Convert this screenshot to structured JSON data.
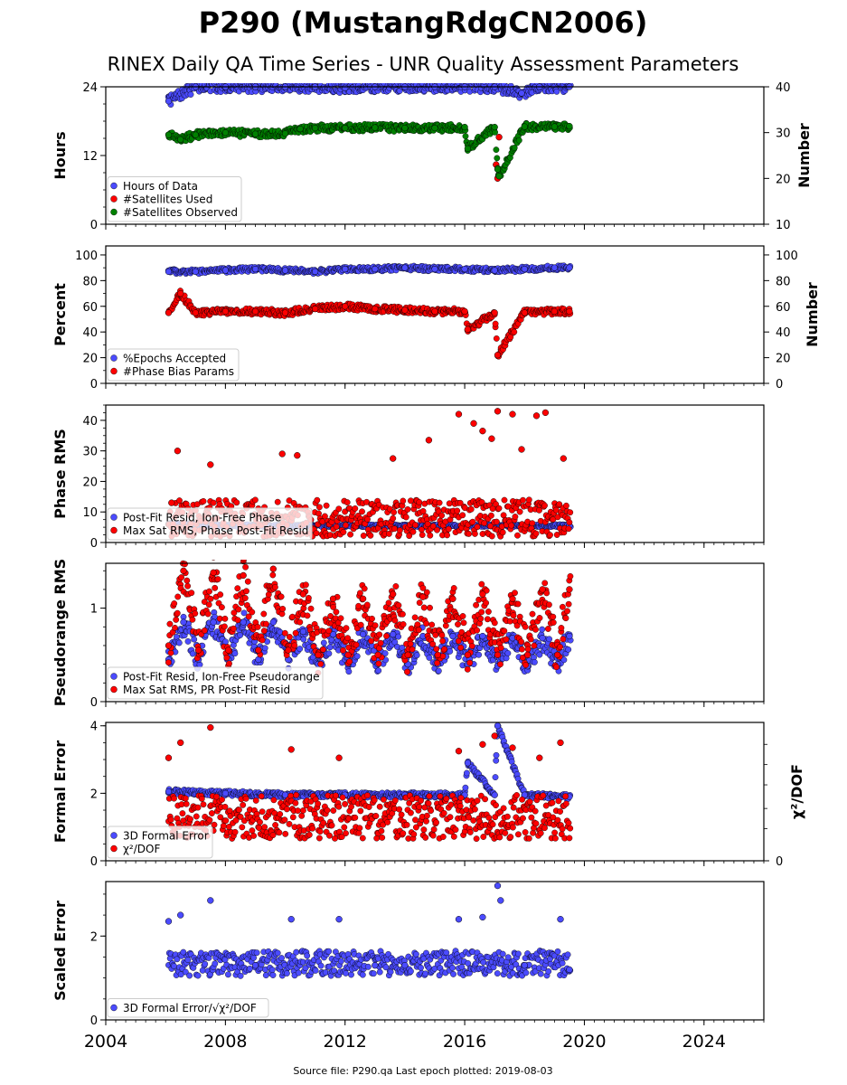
{
  "figure": {
    "title": "P290 (MustangRdgCN2006)",
    "subtitle": "RINEX Daily QA Time Series - UNR Quality Assessment Parameters",
    "source_note": "Source file: P290.qa Last epoch plotted: 2019-08-03"
  },
  "chart_data": [
    {
      "type": "scatter",
      "ylabel": "Hours",
      "ylabel_right": "Number",
      "xlim": [
        2004,
        2026
      ],
      "ylim": [
        0,
        24
      ],
      "ylim_right": [
        10,
        40
      ],
      "yticks": [
        0,
        12,
        24
      ],
      "yticks_right": [
        10,
        20,
        30,
        40
      ],
      "legend_position": "lower-left",
      "series": [
        {
          "name": "Hours of Data",
          "color": "#4b4bff",
          "axis": "left",
          "x": [
            2006.1,
            2007.0,
            2008.0,
            2009.0,
            2010.0,
            2011.0,
            2012.0,
            2013.0,
            2014.0,
            2015.0,
            2016.0,
            2017.0,
            2017.9,
            2018.5,
            2019.5
          ],
          "y": [
            21.5,
            24,
            24,
            24,
            24,
            24,
            23.8,
            24,
            24,
            24,
            24,
            24,
            22.9,
            24,
            24
          ]
        },
        {
          "name": "#Satellites Used",
          "color": "#ff0000",
          "axis": "right",
          "x": [
            2017.05,
            2017.1,
            2017.15
          ],
          "y": [
            23,
            20,
            29
          ]
        },
        {
          "name": "#Satellites Observed",
          "color": "#008000",
          "axis": "right",
          "x": [
            2006.1,
            2006.5,
            2007.0,
            2008.0,
            2009.0,
            2010.0,
            2010.5,
            2011.0,
            2012.0,
            2013.0,
            2014.0,
            2015.0,
            2016.0,
            2016.1,
            2017.0,
            2017.1,
            2017.15,
            2018.0,
            2019.0,
            2019.5
          ],
          "y": [
            29.5,
            28.5,
            29.5,
            30.0,
            29.7,
            29.8,
            30.8,
            31.0,
            31.0,
            31.1,
            31.0,
            31.0,
            31.2,
            26.5,
            31.2,
            22.0,
            20.5,
            31.3,
            31.3,
            31.4
          ]
        }
      ]
    },
    {
      "type": "scatter",
      "ylabel": "Percent",
      "ylabel_right": "Number",
      "xlim": [
        2004,
        2026
      ],
      "ylim": [
        0,
        107
      ],
      "ylim_right": [
        0,
        107
      ],
      "yticks": [
        0,
        20,
        40,
        60,
        80,
        100
      ],
      "yticks_right": [
        0,
        20,
        40,
        60,
        80,
        100
      ],
      "legend_position": "lower-left",
      "series": [
        {
          "name": "%Epochs Accepted",
          "color": "#4b4bff",
          "axis": "left",
          "x": [
            2006.1,
            2007.0,
            2008.0,
            2009.0,
            2010.0,
            2011.0,
            2012.0,
            2013.0,
            2014.0,
            2015.0,
            2016.0,
            2017.0,
            2018.0,
            2019.0,
            2019.5
          ],
          "y": [
            87,
            87,
            88,
            89,
            88,
            87,
            89,
            89,
            90,
            89,
            89,
            88,
            89,
            90,
            90
          ]
        },
        {
          "name": "#Phase Bias Params",
          "color": "#ff0000",
          "axis": "right",
          "x": [
            2006.1,
            2006.5,
            2007.0,
            2008.0,
            2009.0,
            2010.0,
            2011.0,
            2012.0,
            2013.0,
            2014.0,
            2015.0,
            2016.0,
            2016.1,
            2017.0,
            2017.1,
            2018.0,
            2019.0,
            2019.5
          ],
          "y": [
            55,
            70,
            55,
            56,
            56,
            55,
            58,
            60,
            58,
            57,
            56,
            56,
            42,
            55,
            22,
            55,
            56,
            56
          ]
        }
      ]
    },
    {
      "type": "scatter",
      "ylabel": "Phase RMS",
      "xlim": [
        2004,
        2026
      ],
      "ylim": [
        0,
        45
      ],
      "yticks": [
        0,
        10,
        20,
        30,
        40
      ],
      "legend_position": "lower-left",
      "series": [
        {
          "name": "Post-Fit Resid, Ion-Free Phase",
          "color": "#4b4bff",
          "axis": "left",
          "x": [
            2006.1,
            2008.0,
            2010.0,
            2012.0,
            2014.0,
            2016.0,
            2018.0,
            2019.5
          ],
          "y": [
            6,
            5.5,
            5.5,
            5.5,
            5.5,
            5.5,
            5.5,
            5.5
          ]
        },
        {
          "name": "Max Sat RMS, Phase Post-Fit Resid",
          "color": "#ff0000",
          "axis": "left",
          "x": [
            2006.2,
            2006.4,
            2007.5,
            2009.9,
            2010.4,
            2013.6,
            2014.8,
            2015.8,
            2016.3,
            2016.6,
            2016.9,
            2017.1,
            2017.6,
            2017.9,
            2018.4,
            2018.7,
            2019.3
          ],
          "y": [
            13,
            30,
            25.5,
            29,
            28.5,
            27.5,
            33.5,
            42,
            39,
            36.5,
            34,
            43,
            42,
            30.5,
            41.5,
            42.5,
            27.5
          ]
        }
      ]
    },
    {
      "type": "scatter",
      "ylabel": "Pseudorange RMS",
      "xlim": [
        2004,
        2026
      ],
      "ylim": [
        0,
        1.48
      ],
      "yticks": [
        0,
        1
      ],
      "legend_position": "lower-left",
      "series": [
        {
          "name": "Post-Fit Resid, Ion-Free Pseudorange",
          "color": "#4b4bff",
          "axis": "left",
          "x": [
            2006.1,
            2006.6,
            2007.1,
            2007.6,
            2008.1,
            2008.6,
            2009.1,
            2009.6,
            2010.1,
            2010.6,
            2011.1,
            2011.6,
            2012.1,
            2012.6,
            2013.1,
            2013.6,
            2014.1,
            2014.6,
            2015.1,
            2015.6,
            2016.1,
            2016.6,
            2017.1,
            2017.6,
            2018.1,
            2018.6,
            2019.1,
            2019.5
          ],
          "y": [
            0.45,
            0.85,
            0.45,
            0.85,
            0.45,
            0.85,
            0.45,
            0.85,
            0.45,
            0.75,
            0.4,
            0.72,
            0.4,
            0.72,
            0.4,
            0.72,
            0.4,
            0.7,
            0.4,
            0.7,
            0.4,
            0.7,
            0.38,
            0.68,
            0.38,
            0.68,
            0.4,
            0.7
          ]
        },
        {
          "name": "Max Sat RMS, PR Post-Fit Resid",
          "color": "#ff0000",
          "axis": "left",
          "x": [
            2006.1,
            2006.6,
            2007.1,
            2007.6,
            2008.1,
            2008.6,
            2009.1,
            2009.6,
            2010.1,
            2010.6,
            2011.1,
            2011.6,
            2012.1,
            2012.6,
            2013.1,
            2013.6,
            2014.1,
            2014.6,
            2015.1,
            2015.6,
            2016.1,
            2016.6,
            2017.1,
            2017.6,
            2018.1,
            2018.6,
            2019.1,
            2019.5
          ],
          "y": [
            0.6,
            1.4,
            0.55,
            1.38,
            0.55,
            1.35,
            0.55,
            1.42,
            0.55,
            1.15,
            0.5,
            1.1,
            0.5,
            1.1,
            0.5,
            1.15,
            0.5,
            1.12,
            0.5,
            1.1,
            0.5,
            1.15,
            0.5,
            1.1,
            0.5,
            1.2,
            0.5,
            1.2
          ]
        }
      ]
    },
    {
      "type": "scatter",
      "ylabel": "Formal Error",
      "ylabel_right": "χ²/DOF",
      "xlim": [
        2004,
        2026
      ],
      "ylim": [
        0,
        4.1
      ],
      "yticks": [
        0,
        2,
        4
      ],
      "yticks_right": [
        0
      ],
      "legend_position": "lower-left",
      "series": [
        {
          "name": "3D Formal Error",
          "color": "#4b4bff",
          "axis": "left",
          "x": [
            2006.1,
            2008.0,
            2010.0,
            2012.0,
            2014.0,
            2016.0,
            2016.1,
            2017.0,
            2017.1,
            2018.0,
            2019.5
          ],
          "y": [
            2.05,
            2.0,
            1.95,
            1.95,
            1.95,
            1.95,
            2.9,
            1.95,
            4.0,
            1.95,
            1.9
          ]
        },
        {
          "name": "χ²/DOF",
          "color": "#ff0000",
          "axis": "right",
          "x": [
            2006.1,
            2006.5,
            2007.5,
            2010.2,
            2011.8,
            2015.8,
            2016.6,
            2017.0,
            2017.6,
            2018.5,
            2019.2
          ],
          "y": [
            3.05,
            3.5,
            3.95,
            3.3,
            3.05,
            3.25,
            3.45,
            3.7,
            3.35,
            3.05,
            3.5
          ]
        }
      ]
    },
    {
      "type": "scatter",
      "ylabel": "Scaled Error",
      "xlim": [
        2004,
        2026
      ],
      "ylim": [
        0,
        3.3
      ],
      "yticks": [
        0,
        2
      ],
      "xticks": [
        2004,
        2008,
        2012,
        2016,
        2020,
        2024
      ],
      "legend_position": "lower-left",
      "series": [
        {
          "name": "3D Formal Error/√χ²/DOF",
          "color": "#4b4bff",
          "axis": "left",
          "x": [
            2006.1,
            2006.5,
            2007.5,
            2009.0,
            2010.2,
            2011.8,
            2013.0,
            2014.0,
            2015.8,
            2016.6,
            2017.1,
            2017.2,
            2018.0,
            2019.2,
            2019.5
          ],
          "y": [
            2.35,
            2.5,
            2.85,
            1.3,
            2.4,
            2.4,
            1.3,
            1.3,
            2.4,
            2.45,
            3.2,
            2.85,
            1.3,
            2.4,
            1.2
          ]
        }
      ]
    }
  ]
}
